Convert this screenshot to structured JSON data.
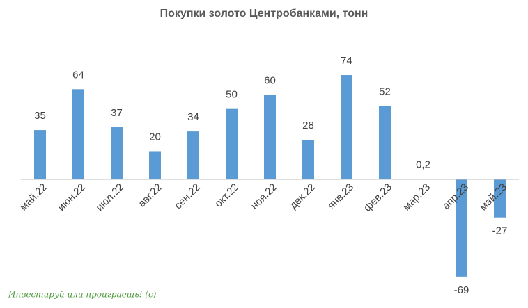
{
  "chart_data": {
    "type": "bar",
    "title": "Покупки золото Центробанками, тонн",
    "categories": [
      "май.22",
      "июн.22",
      "июл.22",
      "авг.22",
      "сен.22",
      "окт.22",
      "ноя.22",
      "дек.22",
      "янв.23",
      "фев.23",
      "мар.23",
      "апр.23",
      "май.23"
    ],
    "values": [
      35,
      64,
      37,
      20,
      34,
      50,
      60,
      28,
      74,
      52,
      0.2,
      -69,
      -27
    ],
    "value_labels": [
      "35",
      "64",
      "37",
      "20",
      "34",
      "50",
      "60",
      "28",
      "74",
      "52",
      "0,2",
      "-69",
      "-27"
    ],
    "color": "#5b9bd5",
    "ylim": [
      -75,
      75
    ],
    "annotation": "Инвестируй или проиграешь! (с)"
  }
}
